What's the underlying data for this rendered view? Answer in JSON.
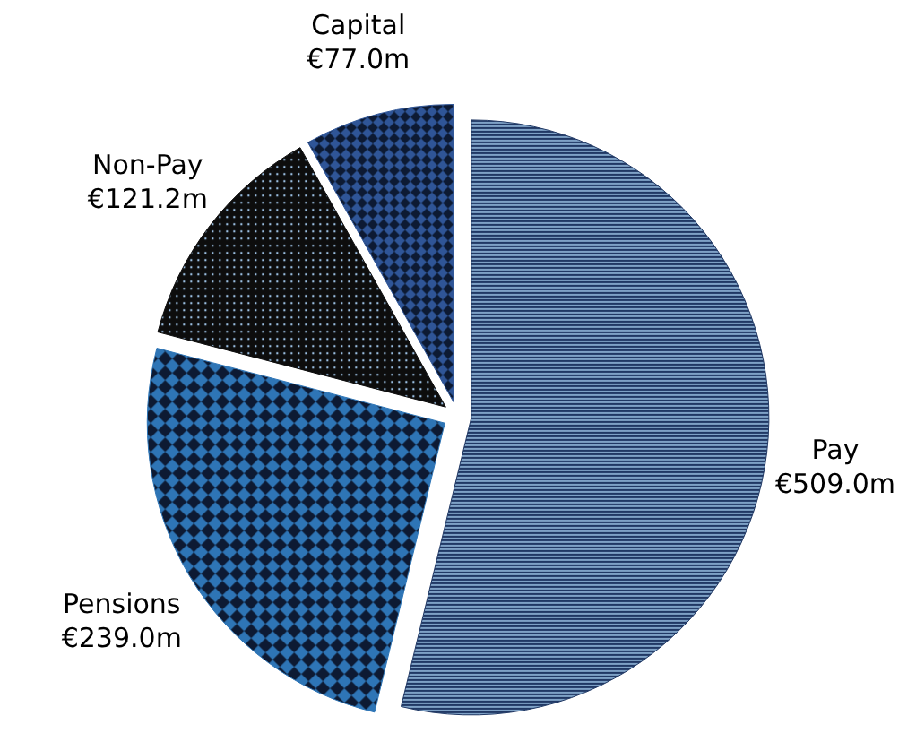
{
  "chart_data": {
    "type": "pie",
    "categories": [
      "Pay",
      "Pensions",
      "Non-Pay",
      "Capital"
    ],
    "values": [
      509.0,
      239.0,
      121.2,
      77.0
    ],
    "colors": [
      "#203864",
      "#2e75b6",
      "#0d0d0d",
      "#2f5597"
    ],
    "value_labels": [
      "€509.0m",
      "€239.0m",
      "€121.2m",
      "€77.0m"
    ]
  }
}
